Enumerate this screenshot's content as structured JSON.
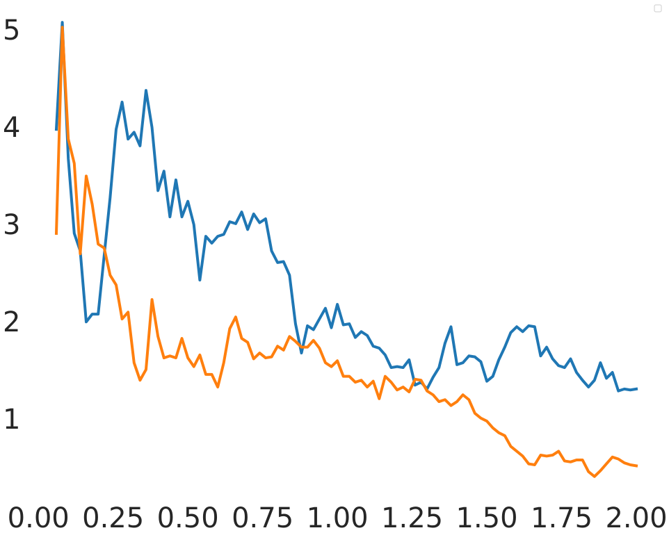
{
  "chart_data": {
    "type": "line",
    "x": [
      0.06,
      0.08,
      0.1,
      0.12,
      0.14,
      0.16,
      0.18,
      0.2,
      0.22,
      0.24,
      0.26,
      0.28,
      0.3,
      0.32,
      0.34,
      0.36,
      0.38,
      0.4,
      0.42,
      0.44,
      0.46,
      0.48,
      0.5,
      0.52,
      0.54,
      0.56,
      0.58,
      0.6,
      0.62,
      0.64,
      0.66,
      0.68,
      0.7,
      0.72,
      0.74,
      0.76,
      0.78,
      0.8,
      0.82,
      0.84,
      0.86,
      0.88,
      0.9,
      0.92,
      0.94,
      0.96,
      0.98,
      1.0,
      1.02,
      1.04,
      1.06,
      1.08,
      1.1,
      1.12,
      1.14,
      1.16,
      1.18,
      1.2,
      1.22,
      1.24,
      1.26,
      1.28,
      1.3,
      1.32,
      1.34,
      1.36,
      1.38,
      1.4,
      1.42,
      1.44,
      1.46,
      1.48,
      1.5,
      1.52,
      1.54,
      1.56,
      1.58,
      1.6,
      1.62,
      1.64,
      1.66,
      1.68,
      1.7,
      1.72,
      1.74,
      1.76,
      1.78,
      1.8,
      1.82,
      1.84,
      1.86,
      1.88,
      1.9,
      1.92,
      1.94,
      1.96,
      1.98,
      2.0
    ],
    "series": [
      {
        "color": "#1f77b4",
        "values": [
          4.0,
          5.1,
          3.7,
          2.93,
          2.75,
          2.02,
          2.1,
          2.1,
          2.7,
          3.3,
          4.0,
          4.28,
          3.9,
          3.97,
          3.83,
          4.4,
          4.02,
          3.37,
          3.57,
          3.1,
          3.48,
          3.1,
          3.26,
          3.02,
          2.45,
          2.9,
          2.83,
          2.9,
          2.92,
          3.05,
          3.03,
          3.15,
          2.97,
          3.13,
          3.04,
          3.08,
          2.75,
          2.63,
          2.64,
          2.5,
          2.0,
          1.7,
          1.98,
          1.94,
          2.05,
          2.16,
          1.96,
          2.2,
          1.99,
          2.0,
          1.86,
          1.92,
          1.88,
          1.77,
          1.75,
          1.68,
          1.55,
          1.56,
          1.55,
          1.63,
          1.37,
          1.4,
          1.33,
          1.45,
          1.55,
          1.8,
          1.97,
          1.58,
          1.6,
          1.67,
          1.66,
          1.61,
          1.41,
          1.46,
          1.63,
          1.76,
          1.91,
          1.97,
          1.92,
          1.98,
          1.97,
          1.67,
          1.76,
          1.64,
          1.57,
          1.55,
          1.64,
          1.5,
          1.42,
          1.35,
          1.42,
          1.6,
          1.44,
          1.5,
          1.31,
          1.33,
          1.32,
          1.33
        ]
      },
      {
        "color": "#ff7f0e",
        "values": [
          2.93,
          5.05,
          3.9,
          3.65,
          2.72,
          3.52,
          3.23,
          2.82,
          2.78,
          2.5,
          2.4,
          2.05,
          2.12,
          1.6,
          1.42,
          1.53,
          2.25,
          1.87,
          1.65,
          1.67,
          1.65,
          1.85,
          1.65,
          1.56,
          1.68,
          1.48,
          1.48,
          1.35,
          1.6,
          1.95,
          2.07,
          1.85,
          1.81,
          1.64,
          1.7,
          1.65,
          1.66,
          1.77,
          1.73,
          1.87,
          1.82,
          1.76,
          1.76,
          1.83,
          1.75,
          1.6,
          1.56,
          1.62,
          1.46,
          1.46,
          1.4,
          1.42,
          1.35,
          1.41,
          1.23,
          1.46,
          1.4,
          1.32,
          1.35,
          1.3,
          1.43,
          1.42,
          1.31,
          1.27,
          1.2,
          1.22,
          1.16,
          1.2,
          1.27,
          1.22,
          1.08,
          1.03,
          1.0,
          0.93,
          0.88,
          0.85,
          0.74,
          0.69,
          0.64,
          0.56,
          0.55,
          0.65,
          0.64,
          0.65,
          0.69,
          0.59,
          0.58,
          0.6,
          0.6,
          0.48,
          0.43,
          0.49,
          0.56,
          0.63,
          0.61,
          0.57,
          0.55,
          0.54
        ]
      }
    ],
    "xlim": [
      -0.04,
      2.1
    ],
    "ylim": [
      0.2,
      5.33
    ],
    "xticks": [
      {
        "value": 0,
        "label": "0.00"
      },
      {
        "value": 0.25,
        "label": "0.25"
      },
      {
        "value": 0.5,
        "label": "0.50"
      },
      {
        "value": 0.75,
        "label": "0.75"
      },
      {
        "value": 1,
        "label": "1.00"
      },
      {
        "value": 1.25,
        "label": "1.25"
      },
      {
        "value": 1.5,
        "label": "1.50"
      },
      {
        "value": 1.75,
        "label": "1.75"
      },
      {
        "value": 2,
        "label": "2.00"
      }
    ],
    "yticks": [
      1,
      2,
      3,
      4,
      5
    ],
    "grid": false,
    "legend": "upper right"
  }
}
